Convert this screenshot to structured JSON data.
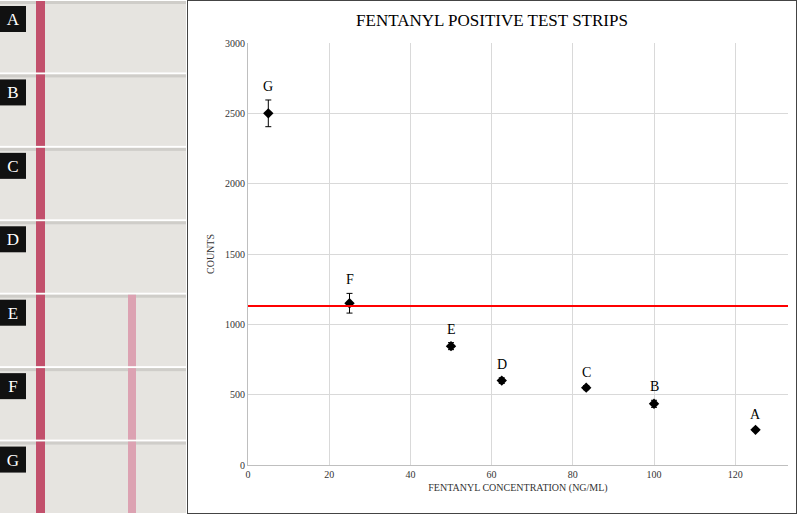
{
  "chart_data": {
    "type": "scatter",
    "title": "FENTANYL POSITIVE TEST STRIPS",
    "x_label": "FENTANYL CONCENTRATION (NG/ML)",
    "y_label": "COUNTS",
    "x": [
      5,
      25,
      50,
      62.5,
      83.3,
      100,
      125
    ],
    "values": [
      2500,
      1150,
      845,
      600,
      550,
      435,
      250
    ],
    "errors": [
      95,
      70,
      25,
      20,
      15,
      25,
      10
    ],
    "labels": [
      "G",
      "F",
      "E",
      "D",
      "C",
      "B",
      "A"
    ],
    "color": "#000000",
    "marker": "diamond",
    "xlim": [
      0,
      133
    ],
    "xticks": [
      0,
      20,
      40,
      60,
      80,
      100,
      120
    ],
    "ylim": [
      0,
      3000
    ],
    "yticks": [
      0,
      500,
      1000,
      1500,
      2000,
      2500,
      3000
    ],
    "grid": true,
    "hline": {
      "value": 1130,
      "color": "#ff0000"
    }
  },
  "strips": {
    "labels": [
      "A",
      "B",
      "C",
      "D",
      "E",
      "F",
      "G"
    ],
    "test_line": [
      false,
      false,
      false,
      false,
      true,
      true,
      true
    ]
  }
}
